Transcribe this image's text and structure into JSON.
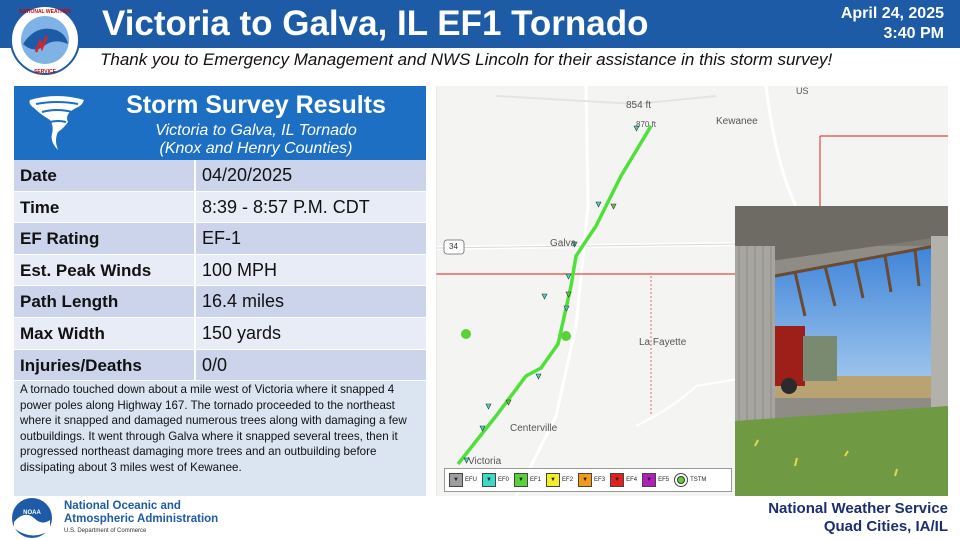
{
  "header": {
    "title": "Victoria to Galva, IL EF1 Tornado",
    "date": "April 24, 2025",
    "time": "3:40 PM",
    "thanks": "Thank you to Emergency Management and NWS Lincoln for their assistance in this storm survey!",
    "logo_icon": "nws-logo-icon"
  },
  "panel": {
    "title": "Storm Survey Results",
    "subtitle_line1": "Victoria to Galva, IL Tornado",
    "subtitle_line2": "(Knox and Henry Counties)",
    "icon": "tornado-icon",
    "rows": [
      {
        "label": "Date",
        "value": "04/20/2025"
      },
      {
        "label": "Time",
        "value": "8:39 - 8:57 P.M. CDT"
      },
      {
        "label": "EF Rating",
        "value": "EF-1"
      },
      {
        "label": "Est. Peak Winds",
        "value": "100 MPH"
      },
      {
        "label": "Path Length",
        "value": "16.4 miles"
      },
      {
        "label": "Max Width",
        "value": "150 yards"
      },
      {
        "label": "Injuries/Deaths",
        "value": "0/0"
      }
    ],
    "summary": "A tornado touched down about a mile west of Victoria where it snapped 4 power poles along Highway 167. The tornado proceeded to the northeast where it snapped and damaged numerous trees along with damaging a few outbuildings. It went through Galva where it snapped several trees, then it progressed northeast damaging more trees and an outbuilding before dissipating about 3 miles west of Kewanee."
  },
  "map": {
    "labels": {
      "elev": "854 ft",
      "elev2": "870 ft",
      "kewanee": "Kewanee",
      "galva": "Galva",
      "lafayette": "La Fayette",
      "centerville": "Centerville",
      "victoria": "Victoria",
      "route34": "34",
      "us": "US"
    },
    "legend": [
      {
        "label": "EFU",
        "color": "#9e9e9e",
        "icon": "triangle-icon"
      },
      {
        "label": "EF0",
        "color": "#3fd9c8",
        "icon": "triangle-icon"
      },
      {
        "label": "EF1",
        "color": "#5ad13a",
        "icon": "triangle-icon"
      },
      {
        "label": "EF2",
        "color": "#f2ef2a",
        "icon": "triangle-icon"
      },
      {
        "label": "EF3",
        "color": "#f29a1d",
        "icon": "triangle-icon"
      },
      {
        "label": "EF4",
        "color": "#e0221f",
        "icon": "triangle-icon"
      },
      {
        "label": "EF5",
        "color": "#b21fb8",
        "icon": "triangle-icon"
      },
      {
        "label": "TSTM",
        "color": "#5ad13a",
        "icon": "circle-icon"
      }
    ],
    "track_color": "#4fe03a"
  },
  "photo": {
    "icon": "damaged-barn-photo"
  },
  "footer": {
    "noaa_line1": "National Oceanic and",
    "noaa_line2": "Atmospheric Administration",
    "noaa_dept": "U.S. Department of Commerce",
    "office_line1": "National Weather Service",
    "office_line2": "Quad Cities, IA/IL",
    "logo_icon": "noaa-logo-icon"
  },
  "colors": {
    "header_blue": "#1d5ba6",
    "panel_blue": "#1d6fc4",
    "row_dark": "#cbd4ea",
    "row_light": "#e8ecf6"
  }
}
